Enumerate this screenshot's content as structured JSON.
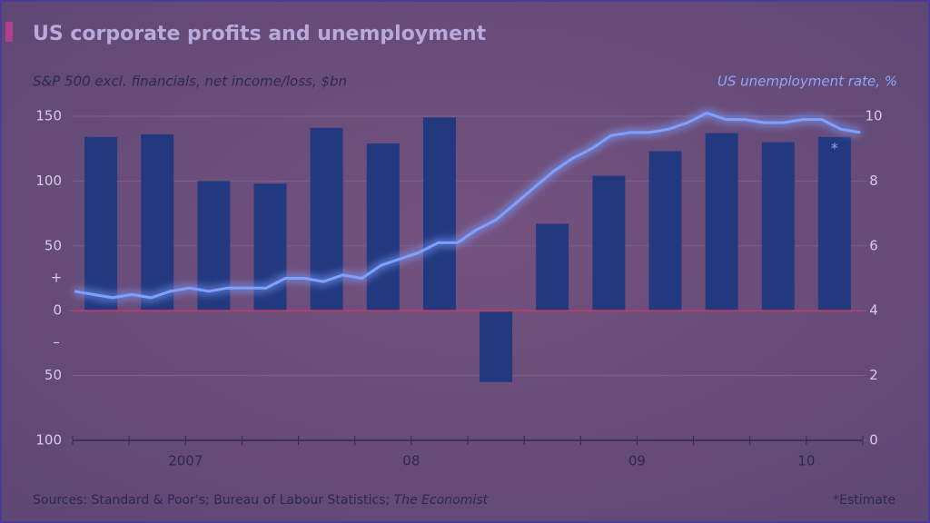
{
  "chart_data": {
    "type": "bar_line",
    "title": "US corporate profits and unemployment",
    "y_label": "S&P 500 excl. financials, net income/loss, $bn",
    "y2_label": "US unemployment rate, %",
    "positive_sign": "+",
    "negative_sign": "–",
    "source": "Sources: Standard & Poor's; Bureau of Labour Statistics; ",
    "source_italic": "The Economist",
    "note": "*Estimate",
    "estimate_marker": "*",
    "year_labels": [
      {
        "label": "2007",
        "first": 0,
        "last": 3
      },
      {
        "label": "08",
        "first": 4,
        "last": 7
      },
      {
        "label": "09",
        "first": 8,
        "last": 11
      },
      {
        "label": "10",
        "first": 12,
        "last": 13
      }
    ],
    "ylim": [
      -100,
      150
    ],
    "yticks": [
      150,
      100,
      50,
      0,
      {
        "value": -50,
        "label": "50"
      },
      {
        "value": -100,
        "label": "100"
      }
    ],
    "y2lim": [
      0,
      10
    ],
    "y2ticks": [
      10,
      8,
      6,
      4,
      2,
      0
    ],
    "grid": true,
    "series": [
      {
        "name": "S&P 500 net income/loss",
        "type": "bar",
        "color": "#23397f",
        "values": [
          134,
          136,
          100,
          98,
          141,
          129,
          149,
          -55,
          67,
          104,
          123,
          137,
          130,
          134
        ]
      },
      {
        "name": "US unemployment rate",
        "type": "line",
        "axis": "y2",
        "color": "#7ea0ff",
        "values": [
          4.6,
          4.5,
          4.4,
          4.5,
          4.4,
          4.6,
          4.7,
          4.6,
          4.7,
          4.7,
          4.7,
          5.0,
          5.0,
          4.9,
          5.1,
          5.0,
          5.4,
          5.6,
          5.8,
          6.1,
          6.1,
          6.5,
          6.8,
          7.3,
          7.8,
          8.3,
          8.7,
          9.0,
          9.4,
          9.5,
          9.5,
          9.6,
          9.8,
          10.1,
          9.9,
          9.9,
          9.8,
          9.8,
          9.9,
          9.9,
          9.6,
          9.5
        ]
      }
    ]
  }
}
